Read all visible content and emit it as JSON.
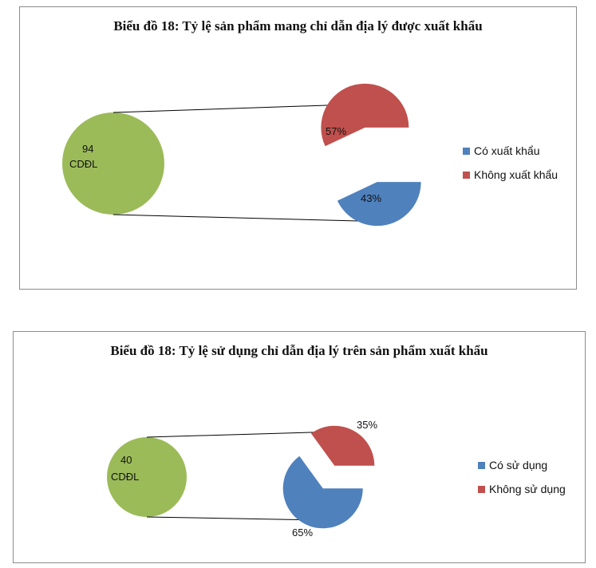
{
  "charts": [
    {
      "title": "Biểu đồ 18: Tỷ lệ sản phẩm mang chỉ dẫn địa lý được xuất khẩu",
      "total_value": "94",
      "total_unit": "CDĐL",
      "legend": [
        {
          "label": "Có xuất khẩu",
          "color": "#4f81bd"
        },
        {
          "label": "Không xuất khẩu",
          "color": "#c0504d"
        }
      ],
      "slice_labels": [
        "43%",
        "57%"
      ]
    },
    {
      "title": "Biểu đồ 18: Tỷ lệ sử dụng chỉ dẫn địa lý trên sản phẩm xuất khẩu",
      "total_value": "40",
      "total_unit": "CDĐL",
      "legend": [
        {
          "label": "Có sử dụng",
          "color": "#4f81bd"
        },
        {
          "label": "Không sử dụng",
          "color": "#c0504d"
        }
      ],
      "slice_labels": [
        "65%",
        "35%"
      ]
    }
  ],
  "chart_data": [
    {
      "type": "pie",
      "title": "Biểu đồ 18: Tỷ lệ sản phẩm mang chỉ dẫn địa lý được xuất khẩu",
      "total": 94,
      "total_label": "CDĐL",
      "categories": [
        "Có xuất khẩu",
        "Không xuất khẩu"
      ],
      "values": [
        43,
        57
      ],
      "colors": [
        "#4f81bd",
        "#c0504d"
      ],
      "legend_position": "right"
    },
    {
      "type": "pie",
      "title": "Biểu đồ 18: Tỷ lệ sử dụng chỉ dẫn địa lý trên sản phẩm xuất khẩu",
      "total": 40,
      "total_label": "CDĐL",
      "categories": [
        "Có sử dụng",
        "Không sử dụng"
      ],
      "values": [
        65,
        35
      ],
      "colors": [
        "#4f81bd",
        "#c0504d"
      ],
      "legend_position": "right"
    }
  ]
}
